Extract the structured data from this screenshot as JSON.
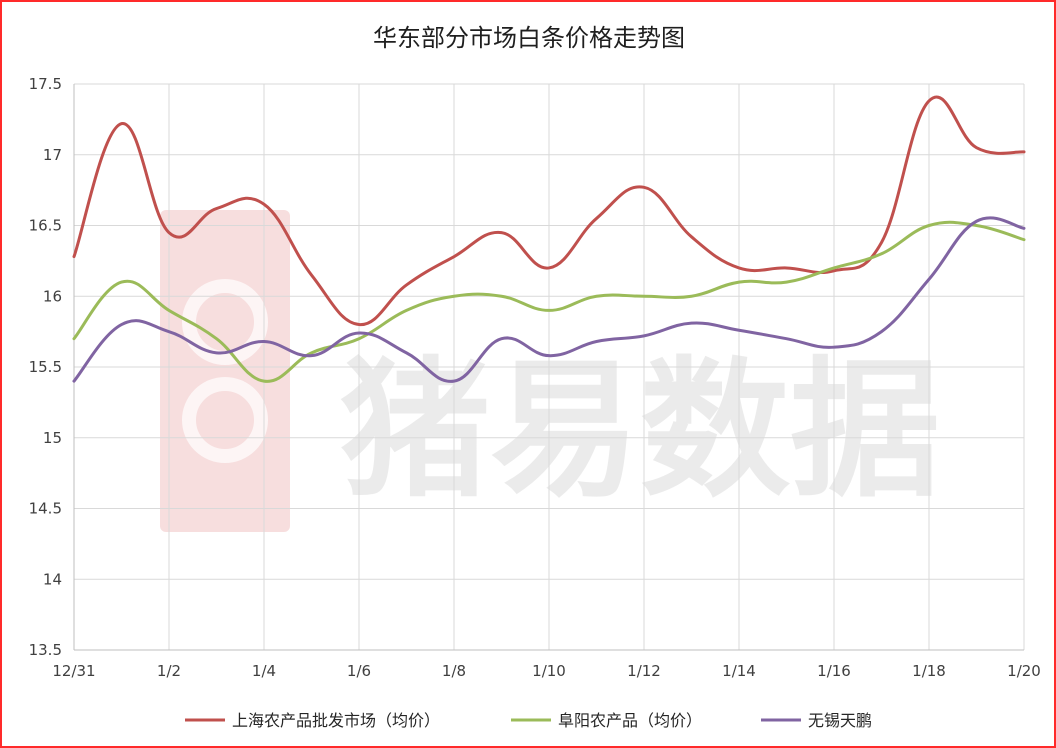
{
  "chart_data": {
    "type": "line",
    "title": "华东部分市场白条价格走势图",
    "xlabel": "",
    "ylabel": "",
    "ylim": [
      13.5,
      17.5
    ],
    "yticks": [
      "17.5",
      "17",
      "16.5",
      "16",
      "15.5",
      "15",
      "14.5",
      "14",
      "13.5"
    ],
    "x": [
      "12/31",
      "1/1",
      "1/2",
      "1/3",
      "1/4",
      "1/5",
      "1/6",
      "1/7",
      "1/8",
      "1/9",
      "1/10",
      "1/11",
      "1/12",
      "1/13",
      "1/14",
      "1/15",
      "1/16",
      "1/17",
      "1/18",
      "1/19",
      "1/20"
    ],
    "xtick_labels": [
      "12/31",
      "1/2",
      "1/4",
      "1/6",
      "1/8",
      "1/10",
      "1/12",
      "1/14",
      "1/16",
      "1/18",
      "1/20"
    ],
    "grid": true,
    "legend_position": "bottom",
    "series": [
      {
        "name": "上海农产品批发市场（均价）",
        "color": "#c0504d",
        "values": [
          16.28,
          17.22,
          16.45,
          16.62,
          16.65,
          16.15,
          15.8,
          16.08,
          16.28,
          16.45,
          16.2,
          16.55,
          16.77,
          16.42,
          16.2,
          16.2,
          16.18,
          16.38,
          17.38,
          17.05,
          17.02
        ]
      },
      {
        "name": "阜阳农产品（均价）",
        "color": "#9bbb59",
        "values": [
          15.7,
          16.1,
          15.9,
          15.7,
          15.4,
          15.6,
          15.7,
          15.9,
          16.0,
          16.0,
          15.9,
          16.0,
          16.0,
          16.0,
          16.1,
          16.1,
          16.2,
          16.3,
          16.5,
          16.5,
          16.4
        ]
      },
      {
        "name": "无锡天鹏",
        "color": "#8064a2",
        "values": [
          15.4,
          15.8,
          15.75,
          15.6,
          15.68,
          15.58,
          15.74,
          15.6,
          15.4,
          15.7,
          15.58,
          15.68,
          15.72,
          15.81,
          15.76,
          15.7,
          15.64,
          15.75,
          16.12,
          16.53,
          16.48
        ]
      }
    ]
  },
  "watermark": {
    "text": "猪易数据",
    "logo_text": "68",
    "logo_color": "#e8a0a0"
  },
  "frame_color": "#ff2a2a"
}
